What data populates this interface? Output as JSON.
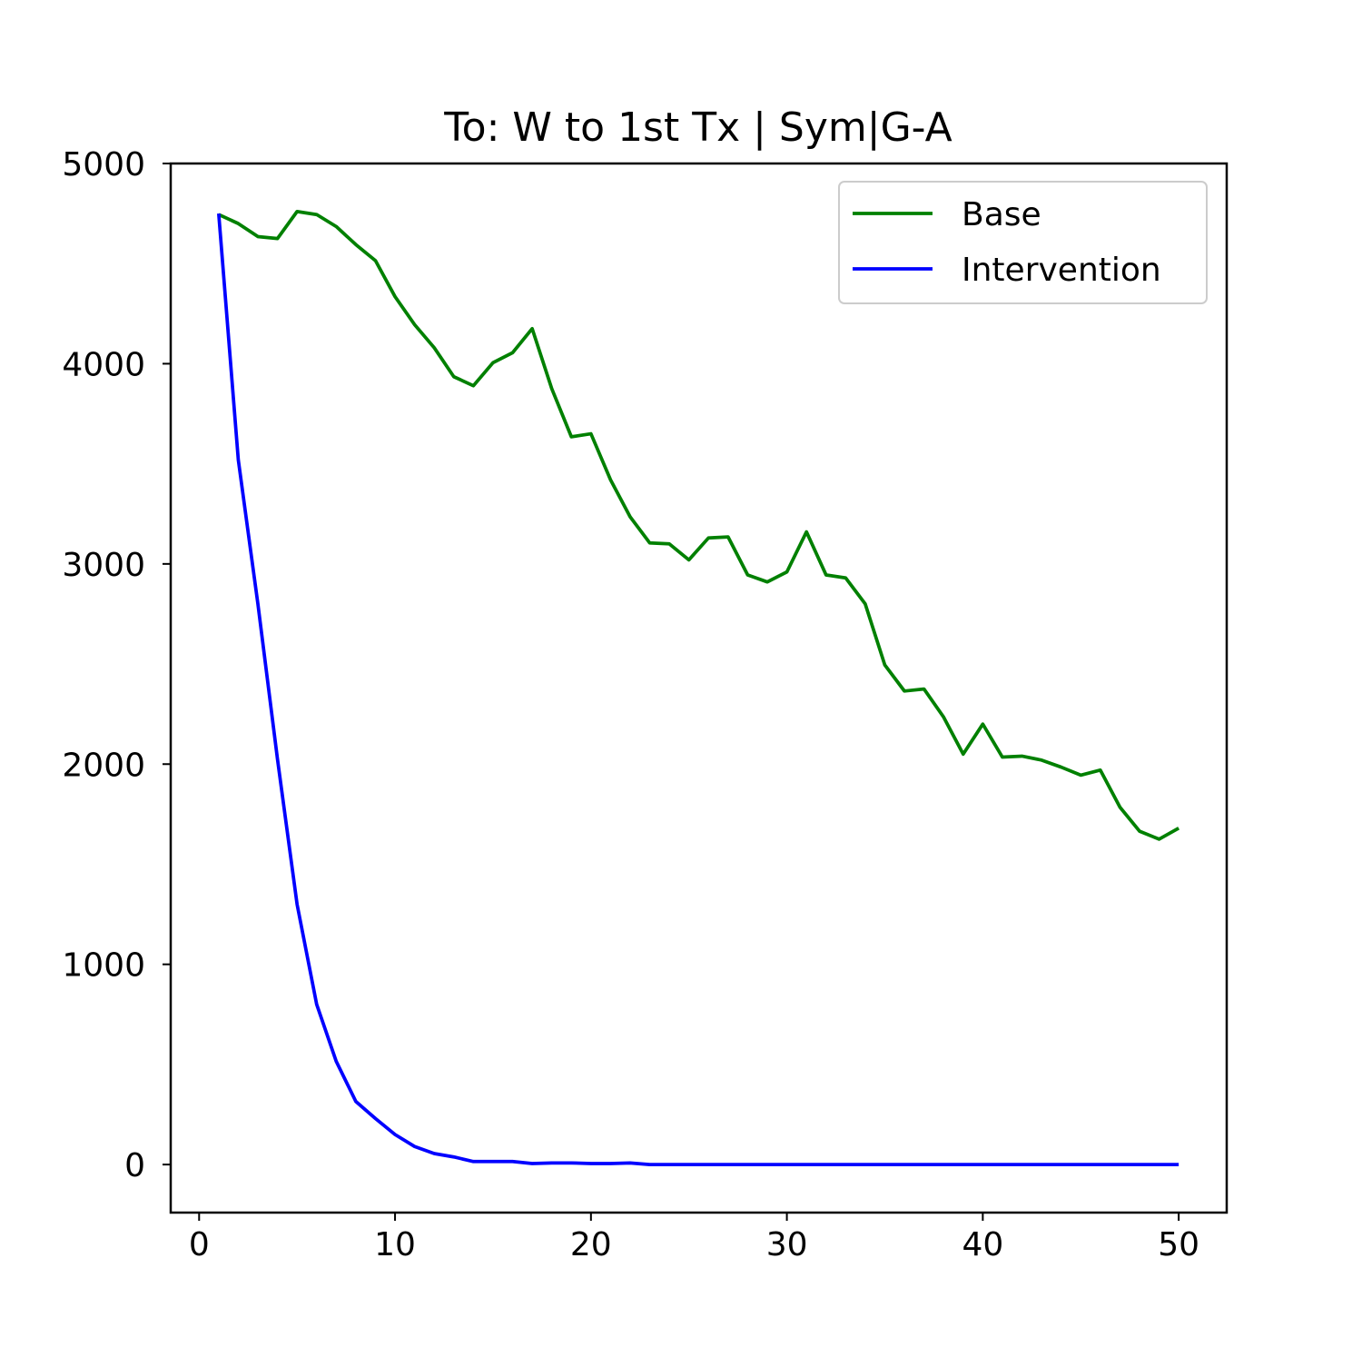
{
  "chart_data": {
    "type": "line",
    "title": "To: W to 1st Tx | Sym|G-A",
    "xlabel": "",
    "ylabel": "",
    "xlim": [
      -1.45,
      52.45
    ],
    "ylim": [
      -240,
      5000
    ],
    "xticks": [
      0,
      10,
      20,
      30,
      40,
      50
    ],
    "yticks": [
      0,
      1000,
      2000,
      3000,
      4000,
      5000
    ],
    "grid": false,
    "legend_position": "top-right",
    "x": [
      1,
      2,
      3,
      4,
      5,
      6,
      7,
      8,
      9,
      10,
      11,
      12,
      13,
      14,
      15,
      16,
      17,
      18,
      19,
      20,
      21,
      22,
      23,
      24,
      25,
      26,
      27,
      28,
      29,
      30,
      31,
      32,
      33,
      34,
      35,
      36,
      37,
      38,
      39,
      40,
      41,
      42,
      43,
      44,
      45,
      46,
      47,
      48,
      49,
      50
    ],
    "series": [
      {
        "name": "Base",
        "color": "#008000",
        "values": [
          4745,
          4700,
          4635,
          4625,
          4760,
          4745,
          4685,
          4595,
          4515,
          4335,
          4195,
          4080,
          3935,
          3890,
          4005,
          4055,
          4175,
          3875,
          3635,
          3650,
          3420,
          3235,
          3105,
          3100,
          3020,
          3130,
          3135,
          2945,
          2910,
          2960,
          3160,
          2945,
          2930,
          2800,
          2495,
          2365,
          2375,
          2235,
          2050,
          2200,
          2035,
          2040,
          2020,
          1985,
          1945,
          1970,
          1785,
          1665,
          1625,
          1680
        ]
      },
      {
        "name": "Intervention",
        "color": "#0000ff",
        "values": [
          4750,
          3520,
          2800,
          2025,
          1300,
          800,
          515,
          315,
          230,
          150,
          90,
          55,
          38,
          15,
          15,
          15,
          5,
          8,
          8,
          5,
          5,
          8,
          0,
          0,
          0,
          0,
          0,
          0,
          0,
          0,
          0,
          0,
          0,
          0,
          0,
          0,
          0,
          0,
          0,
          0,
          0,
          0,
          0,
          0,
          0,
          0,
          0,
          0,
          0,
          0
        ]
      }
    ]
  }
}
